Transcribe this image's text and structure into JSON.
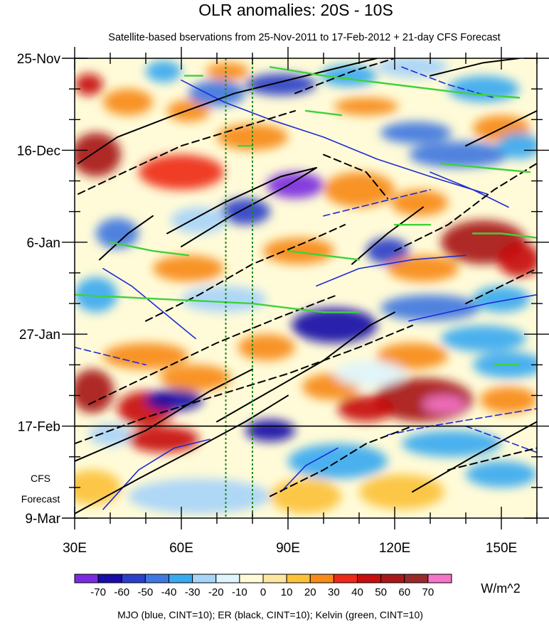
{
  "chart_data": {
    "type": "heatmap",
    "title": "OLR anomalies: 20S - 10S",
    "subtitle": "Satellite-based bservations from 25-Nov-2011 to 17-Feb-2012 + 21-day CFS Forecast",
    "x_range": [
      30,
      160
    ],
    "x_ticks": [
      {
        "value": 30,
        "label": "30E"
      },
      {
        "value": 60,
        "label": "60E"
      },
      {
        "value": 90,
        "label": "90E"
      },
      {
        "value": 120,
        "label": "120E"
      },
      {
        "value": 150,
        "label": "150E"
      }
    ],
    "y_range_days": [
      0,
      105
    ],
    "y_ticks": [
      {
        "day": 0,
        "label": "25-Nov"
      },
      {
        "day": 21,
        "label": "16-Dec"
      },
      {
        "day": 42,
        "label": "6-Jan"
      },
      {
        "day": 63,
        "label": "27-Jan"
      },
      {
        "day": 84,
        "label": "17-Feb"
      },
      {
        "day": 105,
        "label": "9-Mar"
      }
    ],
    "forecast_start_day": 84,
    "forecast_label_line1": "CFS",
    "forecast_label_line2": "Forecast",
    "reference_lons": [
      72.5,
      80
    ],
    "colorbar": {
      "labels": [
        "-70",
        "-60",
        "-50",
        "-40",
        "-30",
        "-20",
        "-10",
        "0",
        "10",
        "20",
        "30",
        "40",
        "50",
        "60",
        "70"
      ],
      "colors": [
        "#7b2be0",
        "#1a0ca8",
        "#2a40c8",
        "#3f78e0",
        "#39aaf0",
        "#a8d4f8",
        "#e0f4fb",
        "#fffbd8",
        "#fde7a0",
        "#fcc23a",
        "#f78a18",
        "#ee2a1a",
        "#c80e0e",
        "#a81818",
        "#9a2a2a",
        "#f474c8"
      ],
      "units": "W/m^2"
    },
    "contour_legend": "MJO (blue, CINT=10); ER (black, CINT=10); Kelvin (green, CINT=10)",
    "blobs": [
      {
        "lon": 34,
        "day": 6,
        "rx": 4,
        "ry": 2.5,
        "value": 40
      },
      {
        "lon": 45,
        "day": 10,
        "rx": 7,
        "ry": 3,
        "value": 25
      },
      {
        "lon": 62,
        "day": 12,
        "rx": 6,
        "ry": 2.5,
        "value": 25
      },
      {
        "lon": 73,
        "day": 3,
        "rx": 6,
        "ry": 2,
        "value": 20
      },
      {
        "lon": 55,
        "day": 3,
        "rx": 5,
        "ry": 2.5,
        "value": -40
      },
      {
        "lon": 70,
        "day": 8,
        "rx": 8,
        "ry": 3,
        "value": -50
      },
      {
        "lon": 88,
        "day": 6,
        "rx": 10,
        "ry": 2.5,
        "value": -60
      },
      {
        "lon": 107,
        "day": 4,
        "rx": 8,
        "ry": 2.5,
        "value": -40
      },
      {
        "lon": 125,
        "day": 2,
        "rx": 10,
        "ry": 2.5,
        "value": -30
      },
      {
        "lon": 145,
        "day": 7,
        "rx": 10,
        "ry": 3,
        "value": -40
      },
      {
        "lon": 112,
        "day": 11,
        "rx": 9,
        "ry": 2,
        "value": 20
      },
      {
        "lon": 150,
        "day": 16,
        "rx": 8,
        "ry": 3,
        "value": 25
      },
      {
        "lon": 126,
        "day": 17,
        "rx": 10,
        "ry": 2.5,
        "value": -45
      },
      {
        "lon": 138,
        "day": 22,
        "rx": 14,
        "ry": 3,
        "value": -50
      },
      {
        "lon": 155,
        "day": 20,
        "rx": 6,
        "ry": 3,
        "value": -40
      },
      {
        "lon": 36,
        "day": 22,
        "rx": 7,
        "ry": 5,
        "value": 50
      },
      {
        "lon": 60,
        "day": 26,
        "rx": 12,
        "ry": 4,
        "value": 30
      },
      {
        "lon": 80,
        "day": 18,
        "rx": 10,
        "ry": 3,
        "value": 25
      },
      {
        "lon": 92,
        "day": 29,
        "rx": 8,
        "ry": 3,
        "value": -75
      },
      {
        "lon": 78,
        "day": 35,
        "rx": 7,
        "ry": 3,
        "value": -55
      },
      {
        "lon": 110,
        "day": 30,
        "rx": 10,
        "ry": 4,
        "value": 25
      },
      {
        "lon": 127,
        "day": 33,
        "rx": 8,
        "ry": 3,
        "value": 20
      },
      {
        "lon": 42,
        "day": 40,
        "rx": 6,
        "ry": 3.5,
        "value": -45
      },
      {
        "lon": 65,
        "day": 37,
        "rx": 8,
        "ry": 3,
        "value": -30
      },
      {
        "lon": 118,
        "day": 44,
        "rx": 6,
        "ry": 3,
        "value": -60
      },
      {
        "lon": 145,
        "day": 42,
        "rx": 12,
        "ry": 5,
        "value": 50
      },
      {
        "lon": 155,
        "day": 46,
        "rx": 6,
        "ry": 4,
        "value": 45
      },
      {
        "lon": 128,
        "day": 48,
        "rx": 10,
        "ry": 3,
        "value": 25
      },
      {
        "lon": 93,
        "day": 44,
        "rx": 10,
        "ry": 3,
        "value": 20
      },
      {
        "lon": 62,
        "day": 48,
        "rx": 10,
        "ry": 3,
        "value": 25
      },
      {
        "lon": 36,
        "day": 54,
        "rx": 6,
        "ry": 4,
        "value": -35
      },
      {
        "lon": 72,
        "day": 55,
        "rx": 12,
        "ry": 3,
        "value": -30
      },
      {
        "lon": 103,
        "day": 61,
        "rx": 12,
        "ry": 4,
        "value": -70
      },
      {
        "lon": 130,
        "day": 57,
        "rx": 14,
        "ry": 3,
        "value": -45
      },
      {
        "lon": 150,
        "day": 55,
        "rx": 8,
        "ry": 3,
        "value": -40
      },
      {
        "lon": 145,
        "day": 64,
        "rx": 12,
        "ry": 3,
        "value": -40
      },
      {
        "lon": 152,
        "day": 70,
        "rx": 10,
        "ry": 3,
        "value": -40
      },
      {
        "lon": 50,
        "day": 68,
        "rx": 12,
        "ry": 3,
        "value": 20
      },
      {
        "lon": 84,
        "day": 66,
        "rx": 8,
        "ry": 3,
        "value": 25
      },
      {
        "lon": 125,
        "day": 68,
        "rx": 10,
        "ry": 3,
        "value": 20
      },
      {
        "lon": 35,
        "day": 76,
        "rx": 6,
        "ry": 5,
        "value": 50
      },
      {
        "lon": 50,
        "day": 80,
        "rx": 8,
        "ry": 4,
        "value": 40
      },
      {
        "lon": 64,
        "day": 73,
        "rx": 10,
        "ry": 3,
        "value": 25
      },
      {
        "lon": 58,
        "day": 78,
        "rx": 8,
        "ry": 2.5,
        "value": -70
      },
      {
        "lon": 85,
        "day": 85,
        "rx": 7,
        "ry": 2.5,
        "value": -70
      },
      {
        "lon": 102,
        "day": 75,
        "rx": 8,
        "ry": 3,
        "value": 25
      },
      {
        "lon": 128,
        "day": 78,
        "rx": 14,
        "ry": 5,
        "value": 55
      },
      {
        "lon": 134,
        "day": 79,
        "rx": 6,
        "ry": 2,
        "value": 72
      },
      {
        "lon": 112,
        "day": 80,
        "rx": 8,
        "ry": 3,
        "value": 45
      },
      {
        "lon": 113,
        "day": 72,
        "rx": 10,
        "ry": 3,
        "value": -20
      },
      {
        "lon": 152,
        "day": 78,
        "rx": 8,
        "ry": 3,
        "value": 25
      },
      {
        "lon": 40,
        "day": 86,
        "rx": 6,
        "ry": 2.5,
        "value": -30
      },
      {
        "lon": 55,
        "day": 87,
        "rx": 10,
        "ry": 3,
        "value": 40
      },
      {
        "lon": 104,
        "day": 92,
        "rx": 14,
        "ry": 4,
        "value": -35
      },
      {
        "lon": 136,
        "day": 88,
        "rx": 14,
        "ry": 3,
        "value": -40
      },
      {
        "lon": 150,
        "day": 95,
        "rx": 10,
        "ry": 3,
        "value": -35
      },
      {
        "lon": 65,
        "day": 100,
        "rx": 20,
        "ry": 4,
        "value": -30
      },
      {
        "lon": 35,
        "day": 98,
        "rx": 8,
        "ry": 4,
        "value": 15
      },
      {
        "lon": 122,
        "day": 99,
        "rx": 12,
        "ry": 4,
        "value": 10
      },
      {
        "lon": 95,
        "day": 100,
        "rx": 10,
        "ry": 4,
        "value": 15
      }
    ],
    "er_solid": [
      [
        [
          31,
          24
        ],
        [
          42,
          18
        ],
        [
          58,
          13
        ],
        [
          75,
          8
        ],
        [
          95,
          4
        ],
        [
          115,
          0
        ]
      ],
      [
        [
          37,
          46
        ],
        [
          45,
          40
        ],
        [
          52,
          36
        ]
      ],
      [
        [
          56,
          40
        ],
        [
          72,
          33
        ],
        [
          88,
          27
        ],
        [
          98,
          25
        ],
        [
          90,
          29
        ],
        [
          74,
          36
        ],
        [
          60,
          43
        ]
      ],
      [
        [
          108,
          47
        ],
        [
          118,
          40
        ],
        [
          128,
          34
        ]
      ],
      [
        [
          70,
          83
        ],
        [
          85,
          76
        ],
        [
          100,
          69
        ],
        [
          113,
          61
        ],
        [
          120,
          58
        ]
      ],
      [
        [
          30,
          92
        ],
        [
          50,
          85
        ],
        [
          68,
          76
        ],
        [
          80,
          71
        ]
      ],
      [
        [
          30,
          104
        ],
        [
          48,
          96
        ],
        [
          62,
          90
        ],
        [
          78,
          83
        ],
        [
          90,
          77
        ]
      ],
      [
        [
          125,
          99
        ],
        [
          142,
          91
        ],
        [
          160,
          83
        ]
      ],
      [
        [
          140,
          20
        ],
        [
          150,
          16
        ],
        [
          160,
          12
        ]
      ],
      [
        [
          130,
          4
        ],
        [
          145,
          1
        ],
        [
          155,
          0
        ]
      ]
    ],
    "er_dashed": [
      [
        [
          31,
          31
        ],
        [
          44,
          26
        ],
        [
          60,
          20
        ],
        [
          76,
          16
        ],
        [
          92,
          12
        ]
      ],
      [
        [
          50,
          60
        ],
        [
          65,
          54
        ],
        [
          80,
          47
        ],
        [
          95,
          42
        ],
        [
          106,
          38
        ]
      ],
      [
        [
          34,
          79
        ],
        [
          52,
          72
        ],
        [
          70,
          65
        ],
        [
          88,
          59
        ],
        [
          104,
          54
        ]
      ],
      [
        [
          30,
          88
        ],
        [
          50,
          82
        ],
        [
          70,
          77
        ],
        [
          90,
          72
        ],
        [
          110,
          66
        ],
        [
          125,
          61
        ]
      ],
      [
        [
          85,
          100
        ],
        [
          100,
          94
        ],
        [
          112,
          88
        ],
        [
          125,
          84
        ]
      ],
      [
        [
          120,
          44
        ],
        [
          135,
          38
        ],
        [
          148,
          30
        ],
        [
          160,
          24
        ]
      ],
      [
        [
          92,
          8
        ],
        [
          108,
          3
        ],
        [
          120,
          0
        ]
      ],
      [
        [
          135,
          94
        ],
        [
          150,
          91
        ],
        [
          160,
          89
        ]
      ],
      [
        [
          100,
          22
        ],
        [
          112,
          26
        ],
        [
          118,
          32
        ]
      ],
      [
        [
          140,
          56
        ],
        [
          150,
          52
        ],
        [
          160,
          48
        ]
      ]
    ],
    "mjo_solid": [
      [
        [
          60,
          5
        ],
        [
          72,
          10
        ],
        [
          85,
          14
        ],
        [
          100,
          18
        ],
        [
          115,
          23
        ],
        [
          130,
          27
        ],
        [
          146,
          31
        ]
      ],
      [
        [
          38,
          48
        ],
        [
          46,
          52
        ],
        [
          55,
          58
        ],
        [
          64,
          64
        ]
      ],
      [
        [
          38,
          103
        ],
        [
          48,
          94
        ],
        [
          58,
          89
        ],
        [
          68,
          87
        ]
      ],
      [
        [
          88,
          99
        ],
        [
          95,
          93
        ],
        [
          104,
          89
        ]
      ],
      [
        [
          124,
          60
        ],
        [
          135,
          58
        ],
        [
          146,
          56
        ],
        [
          160,
          54
        ]
      ],
      [
        [
          98,
          52
        ],
        [
          110,
          48
        ],
        [
          125,
          46
        ],
        [
          140,
          45
        ]
      ],
      [
        [
          130,
          26
        ],
        [
          142,
          30
        ],
        [
          152,
          34
        ]
      ]
    ],
    "mjo_dashed": [
      [
        [
          122,
          2
        ],
        [
          135,
          6
        ],
        [
          148,
          9
        ]
      ],
      [
        [
          100,
          36
        ],
        [
          115,
          33
        ],
        [
          130,
          30
        ]
      ],
      [
        [
          140,
          84
        ],
        [
          150,
          87
        ],
        [
          160,
          90
        ]
      ],
      [
        [
          30,
          66
        ],
        [
          40,
          68
        ],
        [
          50,
          70
        ]
      ],
      [
        [
          118,
          86
        ],
        [
          130,
          84
        ],
        [
          145,
          82
        ],
        [
          160,
          80
        ]
      ]
    ],
    "kelvin": [
      [
        [
          30,
          54
        ],
        [
          55,
          55
        ],
        [
          80,
          56
        ],
        [
          100,
          58
        ],
        [
          110,
          58
        ]
      ],
      [
        [
          40,
          42
        ],
        [
          52,
          44
        ],
        [
          62,
          45
        ]
      ],
      [
        [
          90,
          44
        ],
        [
          100,
          45
        ],
        [
          110,
          46
        ]
      ],
      [
        [
          85,
          2
        ],
        [
          100,
          4
        ],
        [
          120,
          6
        ],
        [
          140,
          8
        ],
        [
          155,
          9
        ]
      ],
      [
        [
          95,
          12
        ],
        [
          105,
          13
        ]
      ],
      [
        [
          133,
          24
        ],
        [
          145,
          25
        ],
        [
          158,
          26
        ]
      ],
      [
        [
          142,
          40
        ],
        [
          150,
          40
        ],
        [
          160,
          41
        ]
      ],
      [
        [
          61,
          4
        ],
        [
          66,
          4
        ]
      ],
      [
        [
          76,
          20
        ],
        [
          80,
          20
        ]
      ],
      [
        [
          148,
          70
        ],
        [
          155,
          70
        ]
      ],
      [
        [
          120,
          38
        ],
        [
          130,
          38
        ]
      ]
    ]
  }
}
